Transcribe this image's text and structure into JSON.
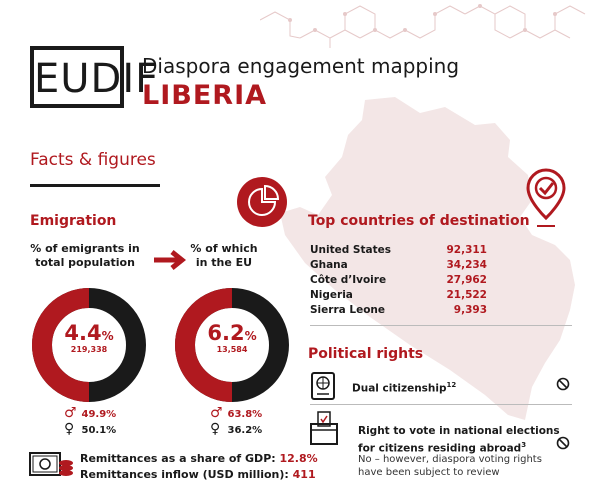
{
  "logo": {
    "text": "EUDIF"
  },
  "header": {
    "title": "Diaspora engagement mapping",
    "country": "LIBERIA"
  },
  "facts_heading": "Facts & figures",
  "emigration": {
    "heading": "Emigration",
    "total": {
      "caption_line1": "% of emigrants in",
      "caption_line2": "total population",
      "percent": "4.4",
      "percent_sign": "%",
      "count": "219,338",
      "fraction": 0.044,
      "male_symbol": "♂",
      "female_symbol": "♀",
      "male": "49.9",
      "female": "50.1",
      "pct_unit": "%"
    },
    "eu": {
      "caption_line1": "% of which",
      "caption_line2": "in the EU",
      "percent": "6.2",
      "percent_sign": "%",
      "count": "13,584",
      "fraction": 0.062,
      "male_symbol": "♂",
      "female_symbol": "♀",
      "male": "63.8",
      "female": "36.2",
      "pct_unit": "%"
    }
  },
  "remittances": {
    "gdp_label": "Remittances as a share of GDP:",
    "gdp_value": "12.8%",
    "inflow_label": "Remittances inflow (USD million):",
    "inflow_value": "411"
  },
  "top_destinations": {
    "heading": "Top countries of destination",
    "rows": [
      {
        "country": "United States",
        "value": "92,311"
      },
      {
        "country": "Ghana",
        "value": "34,234"
      },
      {
        "country": "Côte d’Ivoire",
        "value": "27,962"
      },
      {
        "country": "Nigeria",
        "value": "21,522"
      },
      {
        "country": "Sierra Leone",
        "value": "9,393"
      }
    ]
  },
  "political_rights": {
    "heading": "Political rights",
    "dual_citizenship": {
      "label": "Dual citizenship",
      "sup": "12",
      "icon": "passport-icon",
      "status_icon": "no-icon"
    },
    "voting": {
      "line1": "Right to vote in national elections",
      "line2": "for citizens residing abroad",
      "sup": "3",
      "note_line1": "No – however, diaspora voting rights",
      "note_line2": "have been subject to review",
      "icon": "ballot-box-icon",
      "status_icon": "no-icon"
    }
  },
  "colors": {
    "accent": "#b0191f",
    "dark": "#1a1a1a",
    "map": "#f3e6e6"
  }
}
